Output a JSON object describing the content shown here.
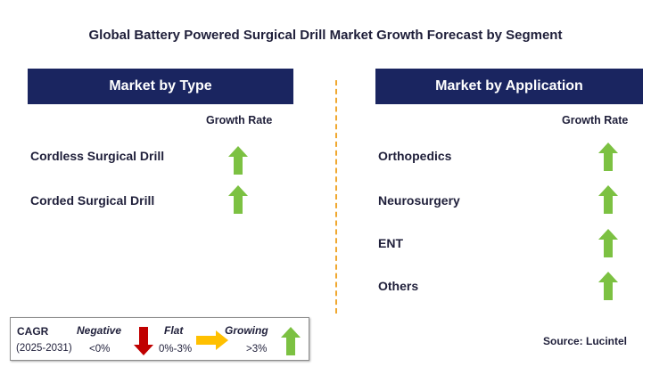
{
  "title": "Global Battery Powered Surgical Drill Market Growth Forecast by Segment",
  "left_panel": {
    "header": "Market by Type",
    "growth_label": "Growth Rate",
    "items": [
      {
        "label": "Cordless Surgical Drill",
        "trend": "growing",
        "icon": "green-up-arrow-icon"
      },
      {
        "label": "Corded Surgical Drill",
        "trend": "growing",
        "icon": "green-up-arrow-icon"
      }
    ]
  },
  "right_panel": {
    "header": "Market by Application",
    "growth_label": "Growth Rate",
    "items": [
      {
        "label": "Orthopedics",
        "trend": "growing",
        "icon": "green-up-arrow-icon"
      },
      {
        "label": "Neurosurgery",
        "trend": "growing",
        "icon": "green-up-arrow-icon"
      },
      {
        "label": "ENT",
        "trend": "growing",
        "icon": "green-up-arrow-icon"
      },
      {
        "label": "Others",
        "trend": "growing",
        "icon": "green-up-arrow-icon"
      }
    ]
  },
  "legend": {
    "cagr_label": "CAGR",
    "years": "(2025-2031)",
    "negative": {
      "label": "Negative",
      "range": "<0%",
      "icon": "red-down-arrow-icon"
    },
    "flat": {
      "label": "Flat",
      "range": "0%-3%",
      "icon": "orange-right-arrow-icon"
    },
    "growing": {
      "label": "Growing",
      "range": ">3%",
      "icon": "green-up-arrow-icon"
    }
  },
  "source": "Source: Lucintel",
  "colors": {
    "header_bg": "#1a2560",
    "up_arrow": "#7cc142",
    "down_arrow": "#c00000",
    "flat_arrow": "#ffc000",
    "divider": "#f0a830"
  }
}
